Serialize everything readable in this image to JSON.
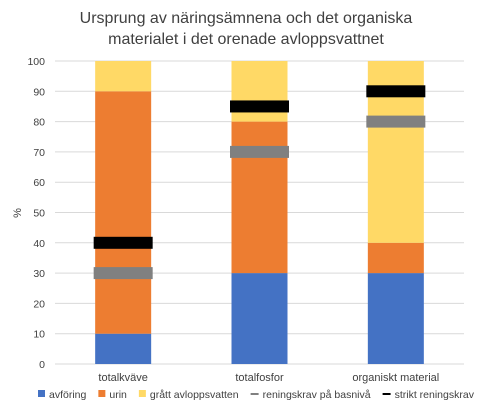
{
  "chart_data": {
    "type": "bar",
    "stacked": true,
    "title": [
      "Ursprung av näringsämnena och det organiska",
      "materialet i det orenade avloppsvattnet"
    ],
    "ylabel": "%",
    "ylim": [
      0,
      100
    ],
    "yticks": [
      0,
      10,
      20,
      30,
      40,
      50,
      60,
      70,
      80,
      90,
      100
    ],
    "grid": true,
    "legend_position": "bottom",
    "categories": [
      "totalkväve",
      "totalfosfor",
      "organiskt material"
    ],
    "series": [
      {
        "name": "avföring",
        "color": "#4472C4",
        "values": [
          10,
          30,
          30
        ]
      },
      {
        "name": "urin",
        "color": "#ED7D31",
        "values": [
          80,
          50,
          10
        ]
      },
      {
        "name": "grått avloppsvatten",
        "color": "#FFD966",
        "values": [
          10,
          20,
          60
        ]
      }
    ],
    "markers": [
      {
        "name": "reningskrav på basnivå",
        "color": "#808080",
        "values": [
          30,
          70,
          80
        ]
      },
      {
        "name": "strikt reningskrav",
        "color": "#000000",
        "values": [
          40,
          85,
          90
        ]
      }
    ]
  }
}
